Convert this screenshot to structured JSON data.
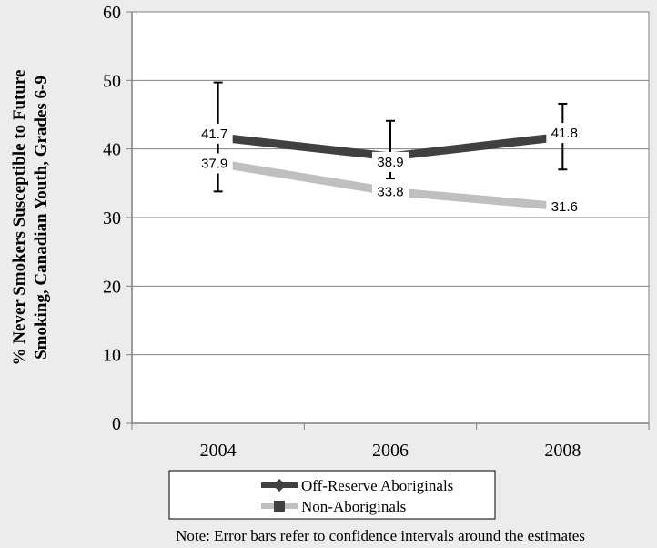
{
  "chart_data": {
    "type": "line",
    "categories": [
      "2004",
      "2006",
      "2008"
    ],
    "ylabel_lines": [
      "% Never Smokers Susceptible to Future",
      "Smoking, Canadian Youth, Grades 6-9"
    ],
    "ylim": [
      0,
      60
    ],
    "yticks": [
      0,
      10,
      20,
      30,
      40,
      50,
      60
    ],
    "grid": "horizontal",
    "legend_position": "bottom",
    "series": [
      {
        "name": "Off-Reserve Aboriginals",
        "values": [
          41.7,
          38.9,
          41.8
        ],
        "labels": [
          "41.7",
          "38.9",
          "41.8"
        ],
        "error_low": [
          33.8,
          35.7,
          37.0
        ],
        "error_high": [
          49.7,
          44.1,
          46.6
        ],
        "color": "#404040",
        "marker": "diamond"
      },
      {
        "name": "Non-Aboriginals",
        "values": [
          37.9,
          33.8,
          31.6
        ],
        "labels": [
          "37.9",
          "33.8",
          "31.6"
        ],
        "color": "#bfbfbf",
        "marker": "square"
      }
    ],
    "note": "Note: Error bars refer to confidence intervals around the estimates"
  },
  "colors": {
    "background": "#ececec",
    "plot_area": "#ffffff",
    "gridline": "#808080",
    "axis": "#808080"
  }
}
